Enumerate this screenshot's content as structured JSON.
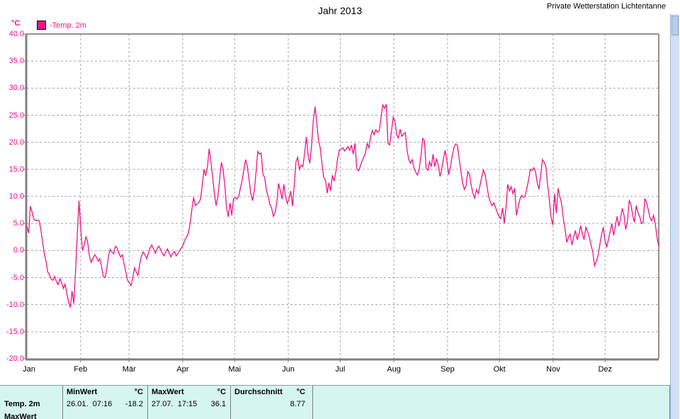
{
  "window": {
    "station_label": "Private Wetterstation Lichtentanne"
  },
  "chart": {
    "title": "Jahr 2013",
    "unit_label": "°C",
    "legend": {
      "label": "-Temp. 2m"
    }
  },
  "colors": {
    "series_pink": "#ed1388",
    "grid_gray": "#a6a6a6",
    "axis_gray": "#808080",
    "table_bg": "#d5f6f0"
  },
  "chart_data": {
    "type": "line",
    "title": "Jahr 2013",
    "ylabel": "°C",
    "ylim": [
      -20,
      40
    ],
    "ytick_step": 5,
    "grid": true,
    "legend_position": "top-left",
    "categories": [
      "Jan",
      "Feb",
      "Mär",
      "Apr",
      "Mai",
      "Jun",
      "Jul",
      "Aug",
      "Sep",
      "Okt",
      "Nov",
      "Dez"
    ],
    "month_days": [
      31,
      28,
      31,
      30,
      31,
      30,
      31,
      31,
      30,
      31,
      30,
      31
    ],
    "series": [
      {
        "name": "-Temp. 2m",
        "color": "#ed1388",
        "values": [
          4.5,
          3.2,
          8.2,
          7.0,
          5.8,
          5.5,
          5.6,
          5.5,
          4.0,
          1.5,
          -0.5,
          -2.0,
          -4.0,
          -4.5,
          -5.3,
          -5.5,
          -4.8,
          -5.8,
          -6.3,
          -5.2,
          -6.0,
          -7.0,
          -6.2,
          -8.0,
          -9.5,
          -10.5,
          -7.5,
          -9.8,
          -4.0,
          3.0,
          9.2,
          4.0,
          0.0,
          1.0,
          2.6,
          1.5,
          -1.0,
          -2.2,
          -1.5,
          -0.8,
          -1.2,
          -2.0,
          -1.5,
          -3.0,
          -4.8,
          -5.0,
          -3.5,
          -1.0,
          0.2,
          -0.3,
          -0.6,
          0.8,
          0.5,
          -0.5,
          -1.2,
          -0.8,
          -2.5,
          -4.0,
          -5.5,
          -6.0,
          -6.5,
          -5.0,
          -3.2,
          -4.0,
          -4.6,
          -2.5,
          -1.0,
          -0.3,
          -0.8,
          -1.5,
          -0.5,
          0.5,
          1.0,
          0.2,
          -0.5,
          0.3,
          0.8,
          0.2,
          -0.5,
          -1.0,
          -0.3,
          0.3,
          -0.5,
          -1.2,
          -0.5,
          -0.2,
          -1.0,
          -0.6,
          0.0,
          0.5,
          1.0,
          2.0,
          2.5,
          3.2,
          5.0,
          7.5,
          9.8,
          8.3,
          8.6,
          8.8,
          9.5,
          12.0,
          15.0,
          13.8,
          15.5,
          18.8,
          16.5,
          13.5,
          10.5,
          8.3,
          10.0,
          13.0,
          16.3,
          15.0,
          12.0,
          8.0,
          6.2,
          8.8,
          6.5,
          9.5,
          9.8,
          9.5,
          10.0,
          11.5,
          13.0,
          15.0,
          16.8,
          15.5,
          13.0,
          10.5,
          9.2,
          11.0,
          14.5,
          18.3,
          17.8,
          18.0,
          14.0,
          13.5,
          11.0,
          10.0,
          8.5,
          7.8,
          6.3,
          7.0,
          9.0,
          12.4,
          11.0,
          9.5,
          12.2,
          10.0,
          8.7,
          9.5,
          11.0,
          8.2,
          12.0,
          16.4,
          17.2,
          15.0,
          15.8,
          15.5,
          18.0,
          21.0,
          17.5,
          16.1,
          19.5,
          24.0,
          26.6,
          23.5,
          20.3,
          19.0,
          16.0,
          13.5,
          13.0,
          10.6,
          12.5,
          11.0,
          13.9,
          12.8,
          14.5,
          17.0,
          18.6,
          18.7,
          19.0,
          18.4,
          18.8,
          19.2,
          18.5,
          19.5,
          17.8,
          19.8,
          15.2,
          14.7,
          15.5,
          16.5,
          17.2,
          18.0,
          19.8,
          19.0,
          21.0,
          22.2,
          21.4,
          22.3,
          21.8,
          22.1,
          24.5,
          26.9,
          26.3,
          27.0,
          19.8,
          19.5,
          22.0,
          24.6,
          24.0,
          21.4,
          20.8,
          22.4,
          21.1,
          21.5,
          21.8,
          18.5,
          16.8,
          16.1,
          16.8,
          15.2,
          14.5,
          13.9,
          15.0,
          17.5,
          20.7,
          20.3,
          15.2,
          14.8,
          16.4,
          15.5,
          17.8,
          15.5,
          17.0,
          15.7,
          13.7,
          15.0,
          17.0,
          18.5,
          16.5,
          14.0,
          15.5,
          17.5,
          19.0,
          19.7,
          19.5,
          17.0,
          14.8,
          12.5,
          11.3,
          12.0,
          14.6,
          14.0,
          12.0,
          10.5,
          9.7,
          11.3,
          10.5,
          12.0,
          13.5,
          14.9,
          14.0,
          12.0,
          10.0,
          9.0,
          8.3,
          8.8,
          8.0,
          7.0,
          6.3,
          5.9,
          7.9,
          5.0,
          8.0,
          12.2,
          11.0,
          11.8,
          10.5,
          11.5,
          6.5,
          8.0,
          9.5,
          10.2,
          9.8,
          10.0,
          11.5,
          13.0,
          15.0,
          14.8,
          15.3,
          14.6,
          12.5,
          11.3,
          14.0,
          16.8,
          16.3,
          15.5,
          12.0,
          9.2,
          6.0,
          4.7,
          10.5,
          6.9,
          11.5,
          10.0,
          8.7,
          6.0,
          4.0,
          1.5,
          2.5,
          3.0,
          1.0,
          2.5,
          3.7,
          2.0,
          3.0,
          4.6,
          3.0,
          2.0,
          4.3,
          3.5,
          2.5,
          1.0,
          -0.3,
          -2.8,
          -2.0,
          -1.0,
          1.0,
          2.8,
          4.3,
          2.0,
          0.6,
          2.0,
          3.5,
          5.0,
          2.8,
          4.5,
          6.3,
          4.5,
          6.0,
          7.8,
          6.5,
          3.9,
          5.5,
          9.2,
          8.5,
          6.5,
          5.2,
          8.3,
          7.0,
          6.3,
          5.0,
          5.2,
          9.6,
          8.9,
          7.5,
          6.0,
          5.5,
          6.5,
          5.0,
          2.5,
          0.8
        ]
      }
    ]
  },
  "summary_table": {
    "row_label": "Temp. 2m",
    "row2_label": "MaxWert",
    "columns": [
      {
        "header": "MinWert",
        "unit": "°C",
        "datetime": "26.01.  07:16",
        "value": "-18.2"
      },
      {
        "header": "MaxWert",
        "unit": "°C",
        "datetime": "27.07.  17:15",
        "value": "36.1"
      },
      {
        "header": "Durchschnitt",
        "unit": "°C",
        "datetime": "",
        "value": "8.77"
      }
    ]
  }
}
